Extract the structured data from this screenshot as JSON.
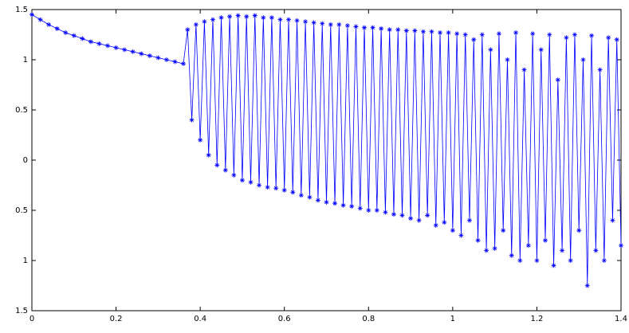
{
  "chart_data": {
    "type": "line",
    "color": "#0000ff",
    "marker": "star",
    "x": [
      0,
      0.02,
      0.04,
      0.06,
      0.08,
      0.1,
      0.12,
      0.14,
      0.16,
      0.18,
      0.2,
      0.22,
      0.24,
      0.26,
      0.28,
      0.3,
      0.32,
      0.34,
      0.36,
      0.37,
      0.38,
      0.39,
      0.4,
      0.41,
      0.42,
      0.43,
      0.44,
      0.45,
      0.46,
      0.47,
      0.48,
      0.49,
      0.5,
      0.51,
      0.52,
      0.53,
      0.54,
      0.55,
      0.56,
      0.57,
      0.58,
      0.59,
      0.6,
      0.61,
      0.62,
      0.63,
      0.64,
      0.65,
      0.66,
      0.67,
      0.68,
      0.69,
      0.7,
      0.71,
      0.72,
      0.73,
      0.74,
      0.75,
      0.76,
      0.77,
      0.78,
      0.79,
      0.8,
      0.81,
      0.82,
      0.83,
      0.84,
      0.85,
      0.86,
      0.87,
      0.88,
      0.89,
      0.9,
      0.91,
      0.92,
      0.93,
      0.94,
      0.95,
      0.96,
      0.97,
      0.98,
      0.99,
      1.0,
      1.01,
      1.02,
      1.03,
      1.04,
      1.05,
      1.06,
      1.07,
      1.08,
      1.09,
      1.1,
      1.11,
      1.12,
      1.13,
      1.14,
      1.15,
      1.16,
      1.17,
      1.18,
      1.19,
      1.2,
      1.21,
      1.22,
      1.23,
      1.24,
      1.25,
      1.26,
      1.27,
      1.28,
      1.29,
      1.3,
      1.31,
      1.32,
      1.33,
      1.34,
      1.35,
      1.36,
      1.37,
      1.38,
      1.39,
      1.4
    ],
    "values": [
      1.45,
      1.4,
      1.35,
      1.31,
      1.27,
      1.24,
      1.21,
      1.18,
      1.16,
      1.14,
      1.12,
      1.1,
      1.08,
      1.06,
      1.04,
      1.02,
      1.0,
      0.98,
      0.96,
      1.3,
      0.4,
      1.35,
      0.2,
      1.38,
      0.05,
      1.4,
      -0.05,
      1.42,
      -0.1,
      1.43,
      -0.15,
      1.44,
      -0.2,
      1.43,
      -0.22,
      1.44,
      -0.25,
      1.42,
      -0.27,
      1.42,
      -0.28,
      1.4,
      -0.3,
      1.4,
      -0.32,
      1.39,
      -0.35,
      1.38,
      -0.37,
      1.37,
      -0.4,
      1.36,
      -0.42,
      1.35,
      -0.43,
      1.35,
      -0.45,
      1.34,
      -0.46,
      1.33,
      -0.48,
      1.32,
      -0.5,
      1.32,
      -0.5,
      1.31,
      -0.52,
      1.3,
      -0.54,
      1.3,
      -0.55,
      1.29,
      -0.58,
      1.29,
      -0.6,
      1.28,
      -0.55,
      1.28,
      -0.65,
      1.27,
      -0.62,
      1.27,
      -0.7,
      1.26,
      -0.75,
      1.25,
      -0.6,
      1.2,
      -0.8,
      1.25,
      -0.9,
      1.1,
      -0.88,
      1.26,
      -0.7,
      1.0,
      -0.95,
      1.27,
      -1.0,
      0.9,
      -0.85,
      1.26,
      -1.0,
      1.1,
      -0.8,
      1.25,
      -1.05,
      0.8,
      -0.9,
      1.22,
      -1.0,
      1.25,
      -0.7,
      1.0,
      -1.25,
      1.24,
      -0.9,
      0.9,
      -1.0,
      1.22,
      -0.6,
      1.2,
      -0.85
    ],
    "xlim": [
      0,
      1.4
    ],
    "xticks": [
      0,
      0.2,
      0.4,
      0.6,
      0.8,
      1,
      1.2,
      1.4
    ],
    "ylim": [
      -1.5,
      1.5
    ],
    "yticks": [
      {
        "value": -1.5,
        "label": "1.5"
      },
      {
        "value": -1,
        "label": "1"
      },
      {
        "value": -0.5,
        "label": "0.5"
      },
      0,
      0.5,
      1,
      1.5
    ],
    "grid": false
  }
}
